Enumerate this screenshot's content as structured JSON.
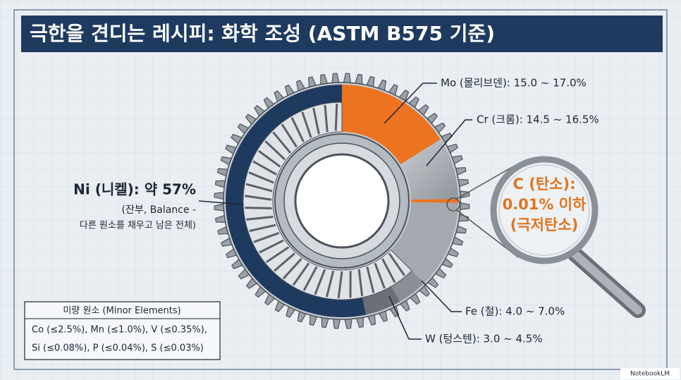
{
  "header": {
    "title": "극한을 견디는 레시피: 화학 조성 (ASTM B575 기준)"
  },
  "labels": {
    "ni": {
      "title": "Ni (니켈): 약 57%",
      "note1": "(잔부, Balance -",
      "note2": "다른 원소를 채우고 남은 전체)"
    },
    "mo": "Mo (몰리브덴): 15.0 ~ 17.0%",
    "cr": "Cr (크롬): 14.5 ~ 16.5%",
    "fe": "Fe (철): 4.0 ~ 7.0%",
    "w": "W (텅스텐): 3.0 ~ 4.5%",
    "c": [
      "C (탄소):",
      "0.01% 이하",
      "(극저탄소)"
    ]
  },
  "minor": {
    "title": "미량 원소 (Minor Elements)",
    "lines": [
      "Co (≤2.5%), Mn (≤1.0%), V (≤0.35%),",
      "Si (≤0.08%), P (≤0.04%), S (≤0.03%)"
    ]
  },
  "watermark": "NotebookLM"
}
